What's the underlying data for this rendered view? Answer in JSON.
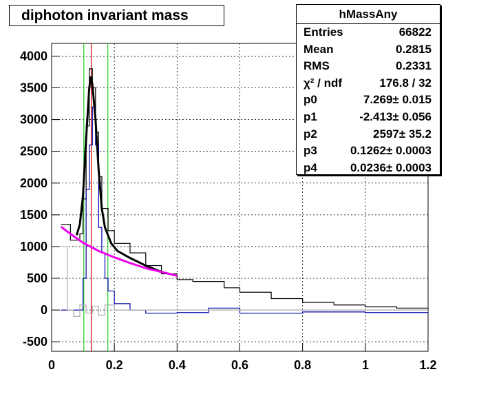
{
  "chart_data": {
    "type": "histogram",
    "title": "diphoton invariant mass",
    "xlim": [
      0,
      1.2
    ],
    "ylim": [
      -650,
      4200
    ],
    "x_ticks": [
      "0",
      "0.2",
      "0.4",
      "0.6",
      "0.8",
      "1",
      "1.2"
    ],
    "y_ticks": [
      "-500",
      "0",
      "500",
      "1000",
      "1500",
      "2000",
      "2500",
      "3000",
      "3500",
      "4000"
    ],
    "x_tick_values": [
      0,
      0.2,
      0.4,
      0.6,
      0.8,
      1.0,
      1.2
    ],
    "y_tick_values": [
      -500,
      0,
      500,
      1000,
      1500,
      2000,
      2500,
      3000,
      3500,
      4000
    ],
    "grid": true,
    "vertical_lines": [
      {
        "x": 0.1026,
        "color": "#22cc22"
      },
      {
        "x": 0.1262,
        "color": "#cc0000"
      },
      {
        "x": 0.1792,
        "color": "#22cc22"
      }
    ],
    "series": [
      {
        "color": "#000000",
        "style": "step",
        "x": [
          0.03,
          0.06,
          0.09,
          0.1,
          0.11,
          0.12,
          0.13,
          0.14,
          0.15,
          0.16,
          0.18,
          0.2,
          0.25,
          0.3,
          0.35,
          0.4,
          0.45,
          0.5,
          0.55,
          0.6,
          0.7,
          0.8,
          0.9,
          1.0,
          1.1,
          1.2
        ],
        "values": [
          1350,
          1100,
          1200,
          1750,
          2900,
          3800,
          3500,
          2800,
          2100,
          1600,
          1250,
          1050,
          900,
          700,
          570,
          480,
          450,
          450,
          350,
          280,
          180,
          120,
          80,
          50,
          30,
          20
        ]
      },
      {
        "color": "#0000aa",
        "style": "step",
        "x": [
          0.03,
          0.08,
          0.1,
          0.11,
          0.12,
          0.13,
          0.14,
          0.15,
          0.16,
          0.17,
          0.18,
          0.2,
          0.25,
          0.3,
          0.4,
          0.5,
          0.6,
          0.8,
          1.0,
          1.2
        ],
        "values": [
          0,
          0,
          500,
          1900,
          2600,
          3200,
          2600,
          1300,
          900,
          500,
          300,
          100,
          0,
          -50,
          -40,
          30,
          -50,
          -30,
          -40,
          -50
        ]
      },
      {
        "color": "#aaaaaa",
        "style": "step",
        "x": [
          0.03,
          0.05,
          0.07,
          0.09,
          0.11,
          0.13,
          0.15,
          0.17,
          0.19,
          0.2,
          1.2
        ],
        "values": [
          1000,
          0,
          -100,
          80,
          -50,
          60,
          -80,
          80,
          80,
          0,
          0
        ]
      },
      {
        "color": "#000000",
        "style": "curve",
        "x": [
          0.08,
          0.09,
          0.1,
          0.11,
          0.12,
          0.125,
          0.13,
          0.14,
          0.15,
          0.16,
          0.17,
          0.19,
          0.21,
          0.25,
          0.3,
          0.35,
          0.4
        ],
        "values": [
          1180,
          1350,
          1800,
          2700,
          3500,
          3680,
          3550,
          3000,
          2200,
          1600,
          1300,
          1050,
          930,
          820,
          700,
          600,
          540
        ]
      },
      {
        "color": "#ee00ee",
        "style": "curve",
        "x": [
          0.03,
          0.06,
          0.1,
          0.15,
          0.2,
          0.25,
          0.3,
          0.35,
          0.4
        ],
        "values": [
          1310,
          1200,
          1060,
          930,
          830,
          740,
          660,
          600,
          540
        ]
      }
    ]
  },
  "stats_box": {
    "name": "hMassAny",
    "rows": [
      {
        "key": "Entries",
        "value": "66822"
      },
      {
        "key": "Mean",
        "value": "0.2815"
      },
      {
        "key": "RMS",
        "value": "0.2331"
      },
      {
        "key": "χ² / ndf",
        "value": "176.8 / 32"
      },
      {
        "key": "p0",
        "value": "7.269± 0.015"
      },
      {
        "key": "p1",
        "value": "-2.413± 0.056"
      },
      {
        "key": "p2",
        "value": "2597± 35.2"
      },
      {
        "key": "p3",
        "value": "0.1262± 0.0003"
      },
      {
        "key": "p4",
        "value": "0.0236± 0.0003"
      }
    ]
  }
}
